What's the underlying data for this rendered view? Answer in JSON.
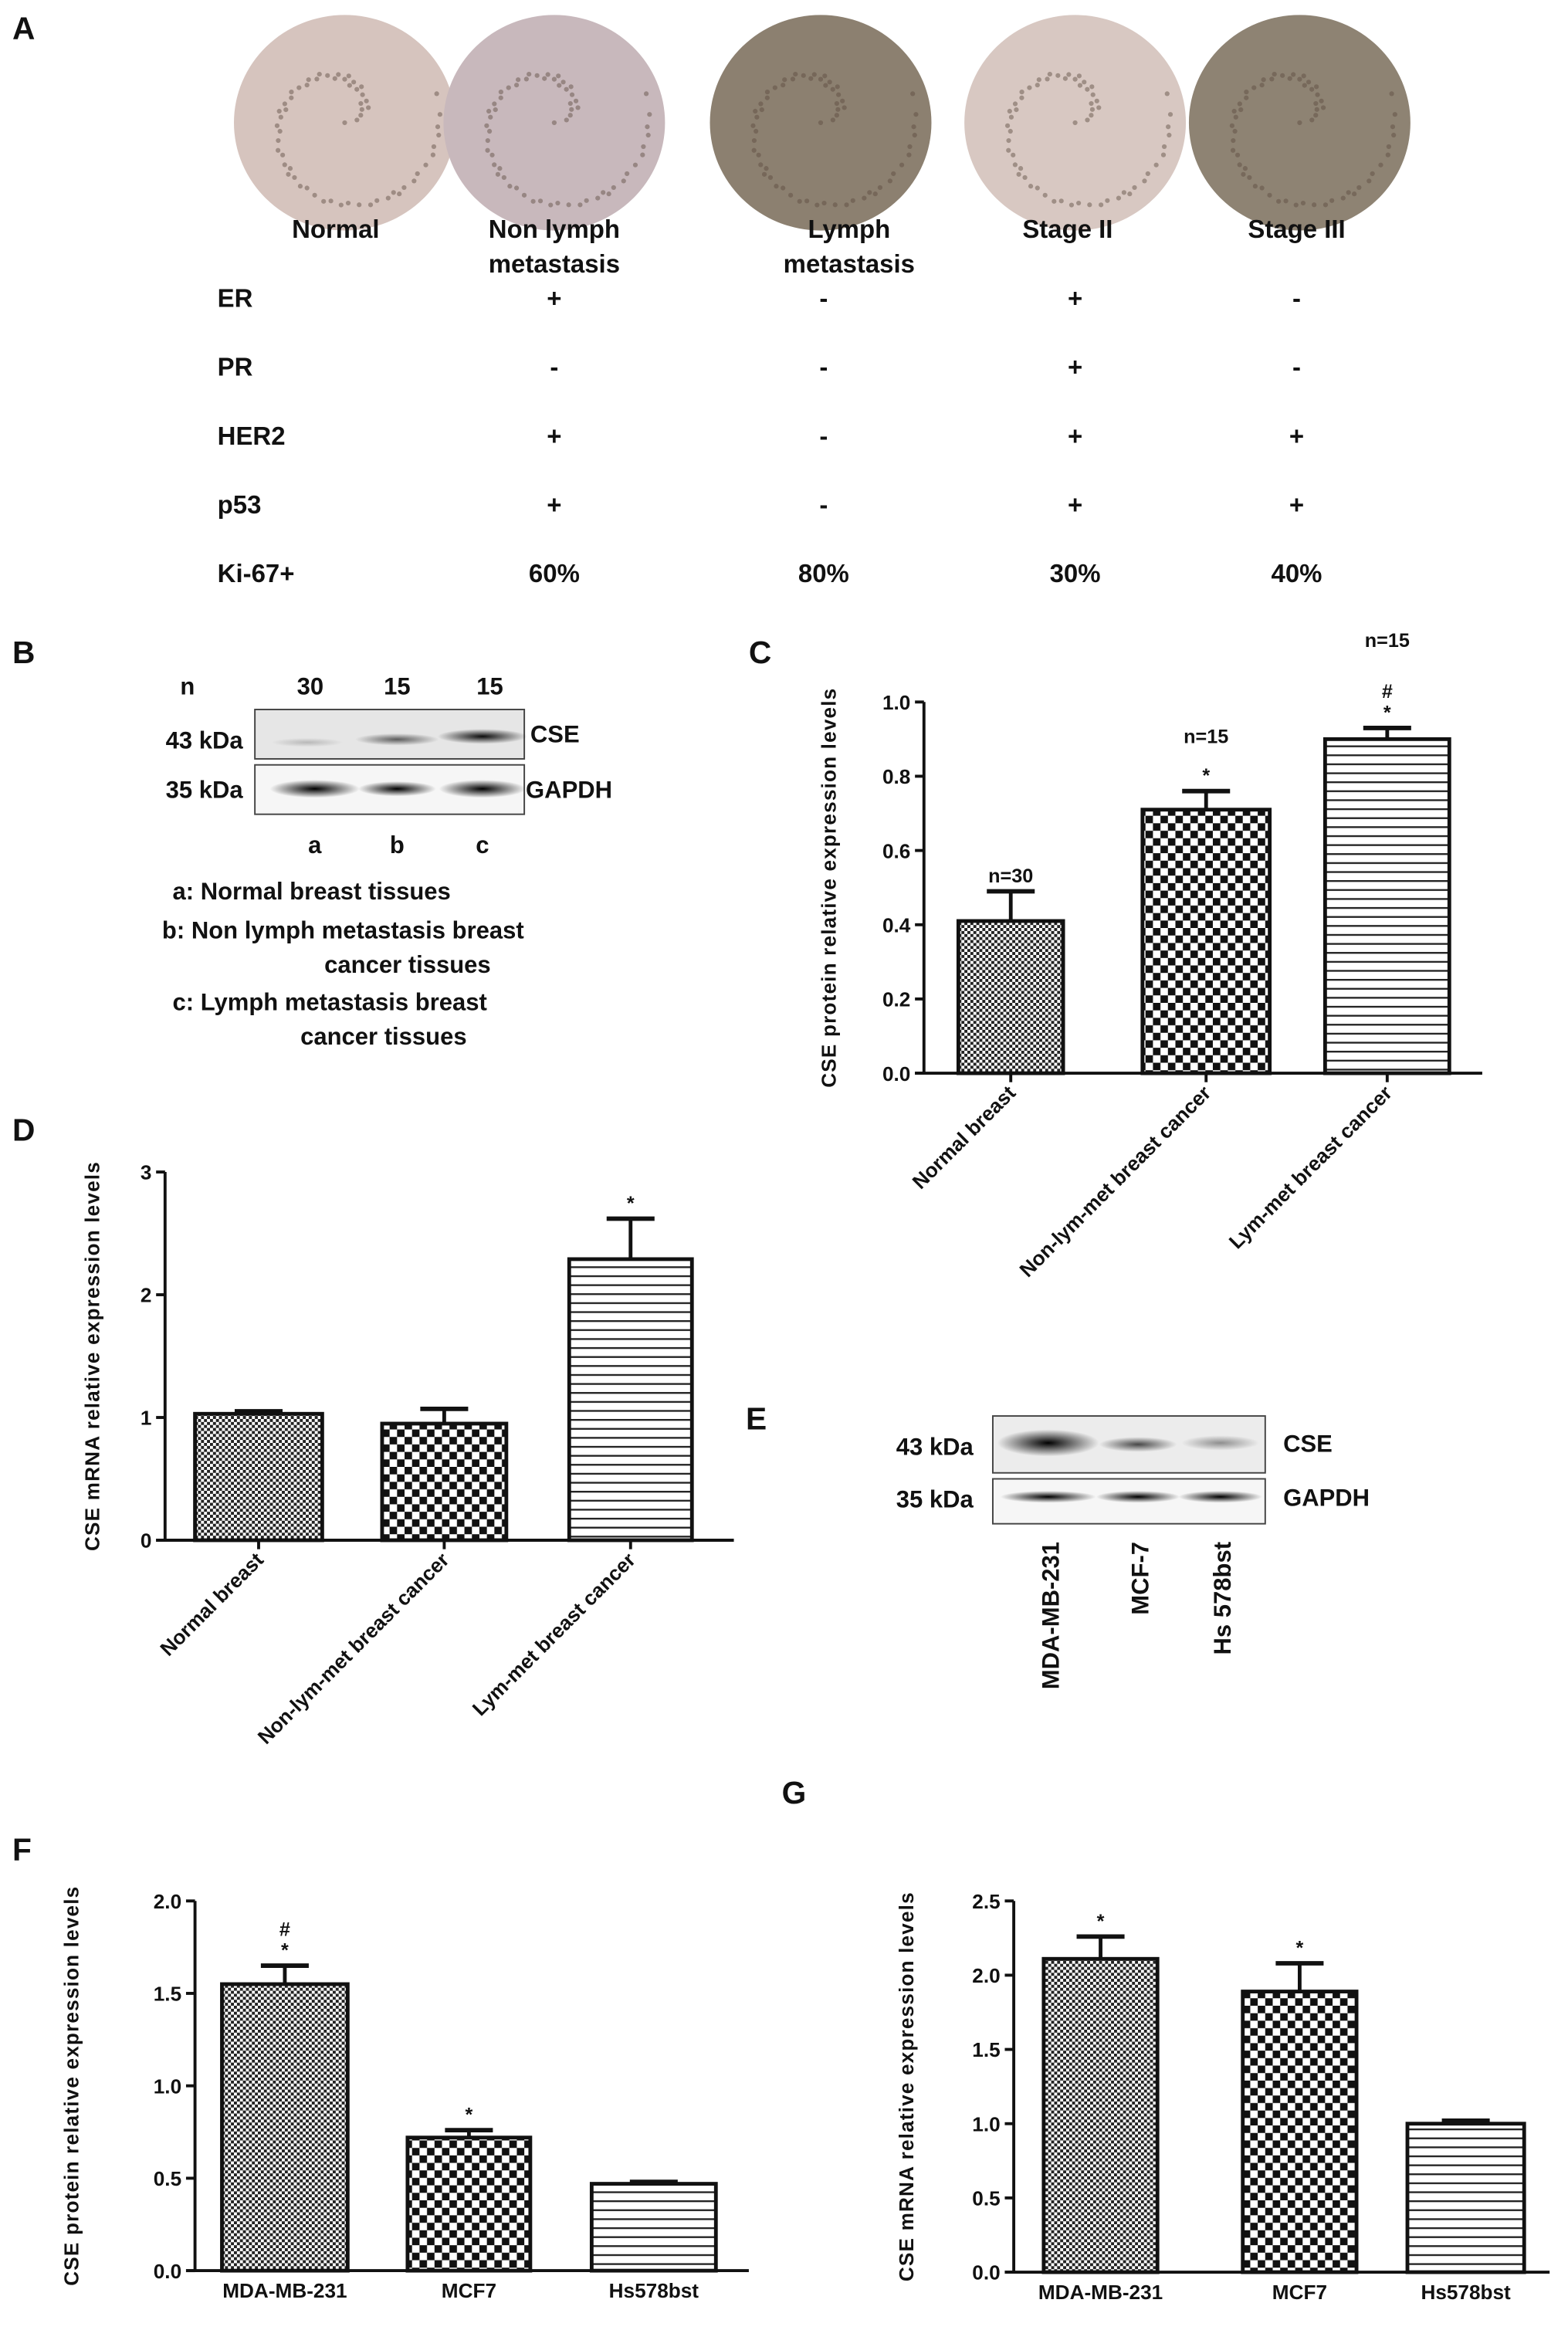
{
  "panel_labels": {
    "A": "A",
    "B": "B",
    "C": "C",
    "D": "D",
    "E": "E",
    "F": "F",
    "G": "G"
  },
  "panel_a": {
    "columns": [
      {
        "lines": [
          "Normal"
        ],
        "color": "#d6c4be"
      },
      {
        "lines": [
          "Non  lymph",
          "metastasis"
        ],
        "color": "#c8b8bc"
      },
      {
        "lines": [
          "Lymph",
          "metastasis"
        ],
        "color": "#8c8070"
      },
      {
        "lines": [
          "Stage II"
        ],
        "color": "#d8c8c2"
      },
      {
        "lines": [
          "Stage III"
        ],
        "color": "#8e8373"
      }
    ],
    "rows": [
      {
        "label": "ER",
        "values": [
          "+",
          "-",
          "+",
          "-"
        ]
      },
      {
        "label": "PR",
        "values": [
          "-",
          "-",
          "+",
          "-"
        ]
      },
      {
        "label": "HER2",
        "values": [
          "+",
          "-",
          "+",
          "+"
        ]
      },
      {
        "label": "p53",
        "values": [
          "+",
          "-",
          "+",
          "+"
        ]
      },
      {
        "label": "Ki-67+",
        "values": [
          "60%",
          "80%",
          "30%",
          "40%"
        ]
      }
    ]
  },
  "panel_b": {
    "n_label": "n",
    "n_values": [
      "30",
      "15",
      "15"
    ],
    "bands": [
      {
        "kda": "43 kDa",
        "protein": "CSE"
      },
      {
        "kda": "35 kDa",
        "protein": "GAPDH"
      }
    ],
    "lanes": [
      "a",
      "b",
      "c"
    ],
    "legend": [
      "a: Normal breast tissues",
      "b:  Non  lymph metastasis breast",
      "cancer tissues",
      "c: Lymph metastasis breast",
      "cancer tissues"
    ]
  },
  "panel_e": {
    "bands": [
      {
        "kda": "43 kDa",
        "protein": "CSE"
      },
      {
        "kda": "35 kDa",
        "protein": "GAPDH"
      }
    ],
    "lanes": [
      "MDA-MB-231",
      "MCF-7",
      "Hs 578bst"
    ]
  },
  "chart_data": [
    {
      "panel": "C",
      "type": "bar",
      "ylabel": "CSE protein relative expression levels",
      "categories": [
        "Normal breast",
        "Non-lym-met breast cancer",
        "Lym-met breast cancer"
      ],
      "values": [
        0.41,
        0.71,
        0.9
      ],
      "errors": [
        0.08,
        0.05,
        0.03
      ],
      "annotations": [
        [
          "n=30"
        ],
        [
          "n=15",
          "*"
        ],
        [
          "n=15",
          "#",
          "*"
        ]
      ],
      "ylim": [
        0,
        1.0
      ],
      "yticks": [
        "0.0",
        "0.2",
        "0.4",
        "0.6",
        "0.8",
        "1.0"
      ],
      "tick_step": 0.2,
      "grid": false
    },
    {
      "panel": "D",
      "type": "bar",
      "ylabel": "CSE mRNA relative expression levels",
      "categories": [
        "Normal breast",
        "Non-lym-met breast cancer",
        "Lym-met breast cancer"
      ],
      "values": [
        1.03,
        0.95,
        2.29
      ],
      "errors": [
        0.02,
        0.12,
        0.33
      ],
      "annotations": [
        [],
        [],
        [
          "*"
        ]
      ],
      "ylim": [
        0,
        3
      ],
      "yticks": [
        "0",
        "1",
        "2",
        "3"
      ],
      "tick_step": 1,
      "grid": false
    },
    {
      "panel": "F",
      "type": "bar",
      "ylabel": "CSE protein relative expression levels",
      "categories": [
        "MDA-MB-231",
        "MCF7",
        "Hs578bst"
      ],
      "values": [
        1.55,
        0.72,
        0.47
      ],
      "errors": [
        0.1,
        0.04,
        0.01
      ],
      "annotations": [
        [
          "#",
          "*"
        ],
        [
          "*"
        ],
        []
      ],
      "ylim": [
        0,
        2.0
      ],
      "yticks": [
        "0.0",
        "0.5",
        "1.0",
        "1.5",
        "2.0"
      ],
      "tick_step": 0.5,
      "grid": false
    },
    {
      "panel": "G",
      "type": "bar",
      "ylabel": "CSE mRNA relative expression levels",
      "categories": [
        "MDA-MB-231",
        "MCF7",
        "Hs578bst"
      ],
      "values": [
        2.11,
        1.89,
        1.0
      ],
      "errors": [
        0.15,
        0.19,
        0.02
      ],
      "annotations": [
        [
          "*"
        ],
        [
          "*"
        ],
        []
      ],
      "ylim": [
        0,
        2.5
      ],
      "yticks": [
        "0.0",
        "0.5",
        "1.0",
        "1.5",
        "2.0",
        "2.5"
      ],
      "tick_step": 0.5,
      "grid": false
    }
  ]
}
